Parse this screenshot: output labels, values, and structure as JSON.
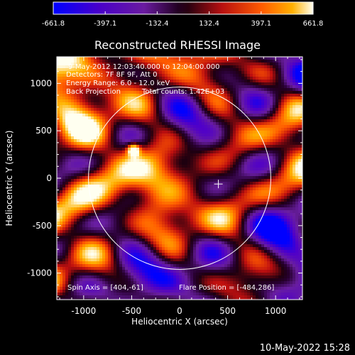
{
  "chart_data": {
    "type": "heatmap",
    "title": "Reconstructed RHESSI Image",
    "xlabel": "Heliocentric X (arcsec)",
    "ylabel": "Heliocentric Y (arcsec)",
    "xlim": [
      -1280,
      1280
    ],
    "ylim": [
      -1280,
      1280
    ],
    "x_ticks": [
      -1000,
      -500,
      0,
      500,
      1000
    ],
    "y_ticks": [
      -1000,
      -500,
      0,
      500,
      1000
    ],
    "x_tick_labels": [
      "-1000",
      "-500",
      "0",
      "500",
      "1000"
    ],
    "y_tick_labels": [
      "-1000",
      "-500",
      "0",
      "500",
      "1000"
    ],
    "colorbar": {
      "min": -661.8,
      "max": 661.8,
      "ticks": [
        -661.8,
        -397.1,
        -132.4,
        132.4,
        397.1,
        661.8
      ],
      "tick_labels": [
        "-661.8",
        "-397.1",
        "-132.4",
        "132.4",
        "397.1",
        "661.8"
      ]
    },
    "solar_limb_radius_arcsec": 950,
    "sun_center": [
      0,
      0
    ],
    "flare_position_marker": [
      404,
      -61
    ],
    "bright_source": {
      "x": -480,
      "y": 300,
      "value": 661.8
    },
    "annotations": [
      "9-May-2012 12:03:40.000 to 12:04:00.000",
      "Detectors: 7F 8F 9F, Att 0",
      "Energy Range: 6.0 - 12.0 keV",
      "Back Projection",
      "Total counts: 1.42E+03"
    ],
    "spin_axis": "Spin Axis = [404,-61]",
    "flare_position": "Flare Position = [-484,286]",
    "footer_timestamp": "10-May-2022 15:28",
    "grid": false
  }
}
